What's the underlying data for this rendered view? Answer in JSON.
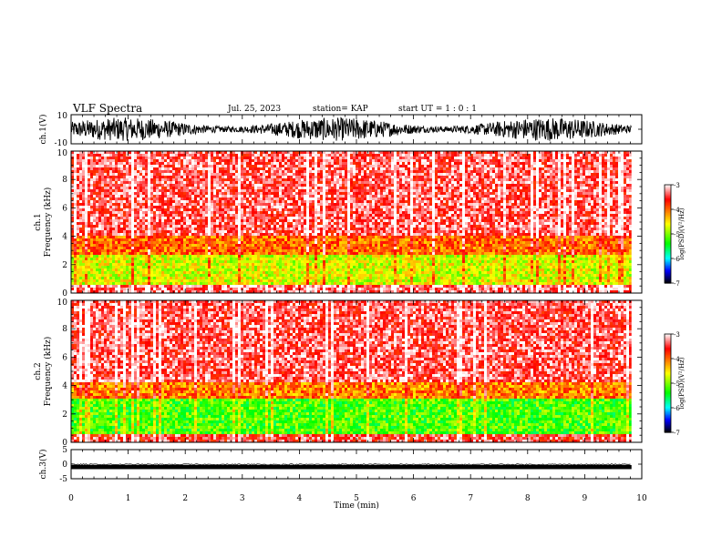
{
  "header": {
    "title": "VLF Spectra",
    "date": "Jul. 25, 2023",
    "station": "station= KAP",
    "start": "start  UT  =   1 : 0  : 1"
  },
  "chart_data": [
    {
      "type": "line",
      "panel": "ch1-waveform",
      "ylabel": "ch.1(V)",
      "yticklabels": [
        "10",
        "-10"
      ],
      "ylim": [
        -10,
        10
      ],
      "xlim": [
        0,
        10
      ],
      "data_end_min": 9.82
    },
    {
      "type": "heatmap",
      "panel": "ch1-spectrogram",
      "ylabel": "ch.1\nFrequency  (kHz)",
      "yticks": [
        0,
        2,
        4,
        6,
        8,
        10
      ],
      "ylim": [
        0,
        10
      ],
      "xlim": [
        0,
        10
      ],
      "data_end_min": 9.82,
      "colorbar": {
        "label": "log(PSD)(V²/Hz)",
        "range": [
          -7,
          -3
        ],
        "ticks": [
          -3,
          -4,
          -5,
          -6,
          -7
        ],
        "colors": [
          "#ffffff",
          "#ff0000",
          "#ffff00",
          "#00ff00",
          "#00ffff",
          "#0000ff",
          "#000000"
        ]
      },
      "bands": [
        {
          "freq_khz": [
            0,
            0.5
          ],
          "level": -3.3
        },
        {
          "freq_khz": [
            0.5,
            2.6
          ],
          "level": -4.7
        },
        {
          "freq_khz": [
            2.6,
            4.0
          ],
          "level": -4.0
        },
        {
          "freq_khz": [
            4.0,
            10
          ],
          "level": -3.4
        }
      ]
    },
    {
      "type": "heatmap",
      "panel": "ch2-spectrogram",
      "ylabel": "ch.2\nFrequency  (kHz)",
      "yticks": [
        0,
        2,
        4,
        6,
        8,
        10
      ],
      "ylim": [
        0,
        10
      ],
      "xlim": [
        0,
        10
      ],
      "data_end_min": 9.82,
      "colorbar": {
        "label": "log(PSD)(V²/Hz)",
        "range": [
          -7,
          -3
        ],
        "ticks": [
          -3,
          -4,
          -5,
          -6,
          -7
        ],
        "colors": [
          "#ffffff",
          "#ff0000",
          "#ffff00",
          "#00ff00",
          "#00ffff",
          "#0000ff",
          "#000000"
        ]
      },
      "bands": [
        {
          "freq_khz": [
            0,
            0.5
          ],
          "level": -3.5
        },
        {
          "freq_khz": [
            0.5,
            3.0
          ],
          "level": -5.2
        },
        {
          "freq_khz": [
            3.0,
            4.3
          ],
          "level": -4.1
        },
        {
          "freq_khz": [
            4.3,
            10
          ],
          "level": -3.4
        }
      ]
    },
    {
      "type": "line",
      "panel": "ch3-waveform",
      "ylabel": "ch.3(V)",
      "yticklabels": [
        "5",
        "0",
        "-5"
      ],
      "ylim": [
        -5,
        5
      ],
      "xlim": [
        0,
        10
      ],
      "data_end_min": 9.82,
      "xlabel": "Time  (min)",
      "xticks": [
        0,
        1,
        2,
        3,
        4,
        5,
        6,
        7,
        8,
        9,
        10
      ]
    }
  ]
}
